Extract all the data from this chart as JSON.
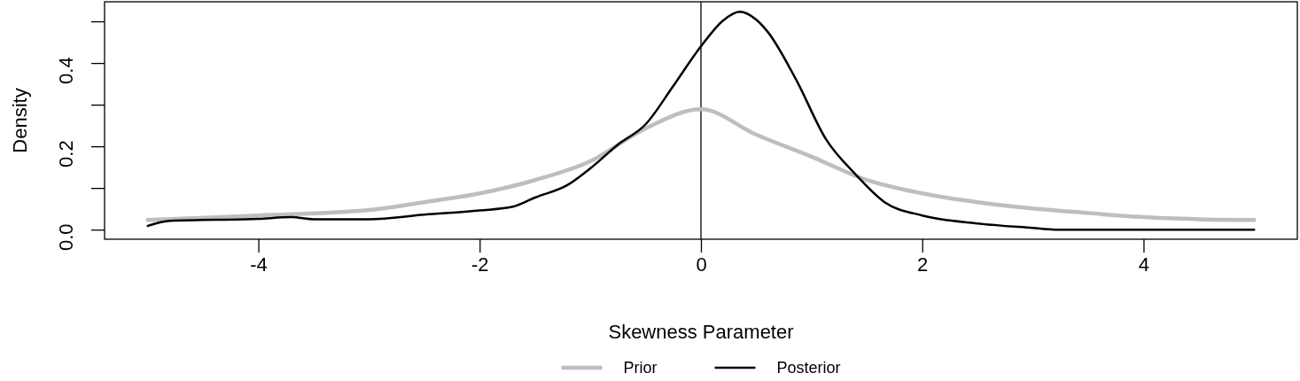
{
  "chart_data": {
    "type": "line",
    "xlabel": "Skewness Parameter",
    "ylabel": "Density",
    "xlim": [
      -5.39,
      5.39
    ],
    "ylim": [
      -0.023,
      0.547
    ],
    "xticks": [
      -4,
      -2,
      0,
      2,
      4
    ],
    "yticks": [
      {
        "value": 0,
        "label": "0.0"
      },
      {
        "value": 0.1,
        "label": null
      },
      {
        "value": 0.2,
        "label": "0.2"
      },
      {
        "value": 0.3,
        "label": null
      },
      {
        "value": 0.4,
        "label": "0.4"
      },
      {
        "value": 0.5,
        "label": null
      }
    ],
    "grid": false,
    "legend": "bottom",
    "line_style": "solid",
    "marker": "none",
    "ref_lines": [
      {
        "axis": "x",
        "value": 0,
        "color": "#000000"
      }
    ],
    "series": [
      {
        "name": "Prior",
        "color": "#bebebe",
        "x": [
          -5,
          -4,
          -3,
          -2.5,
          -2,
          -1.5,
          -1,
          -0.5,
          0,
          0.5,
          1,
          1.5,
          2,
          2.5,
          3,
          3.5,
          4,
          4.5,
          5
        ],
        "values": [
          0.023,
          0.034,
          0.047,
          0.066,
          0.087,
          0.119,
          0.164,
          0.243,
          0.289,
          0.228,
          0.175,
          0.119,
          0.087,
          0.066,
          0.051,
          0.04,
          0.03,
          0.025,
          0.023
        ]
      },
      {
        "name": "Posterior",
        "color": "#000000",
        "x": [
          -5,
          -4.8,
          -4,
          -3.7,
          -3.5,
          -3,
          -2.5,
          -2,
          -1.7,
          -1.5,
          -1.2,
          -1,
          -0.75,
          -0.5,
          -0.25,
          0,
          0.2,
          0.35,
          0.5,
          0.6,
          0.86,
          1.13,
          1.4,
          1.66,
          2,
          2.5,
          3,
          3.2,
          4,
          5
        ],
        "values": [
          0.009,
          0.021,
          0.026,
          0.03,
          0.025,
          0.025,
          0.036,
          0.046,
          0.055,
          0.077,
          0.108,
          0.147,
          0.204,
          0.253,
          0.345,
          0.44,
          0.502,
          0.523,
          0.504,
          0.476,
          0.36,
          0.217,
          0.132,
          0.066,
          0.034,
          0.015,
          0.004,
          0,
          0,
          0
        ]
      }
    ]
  }
}
